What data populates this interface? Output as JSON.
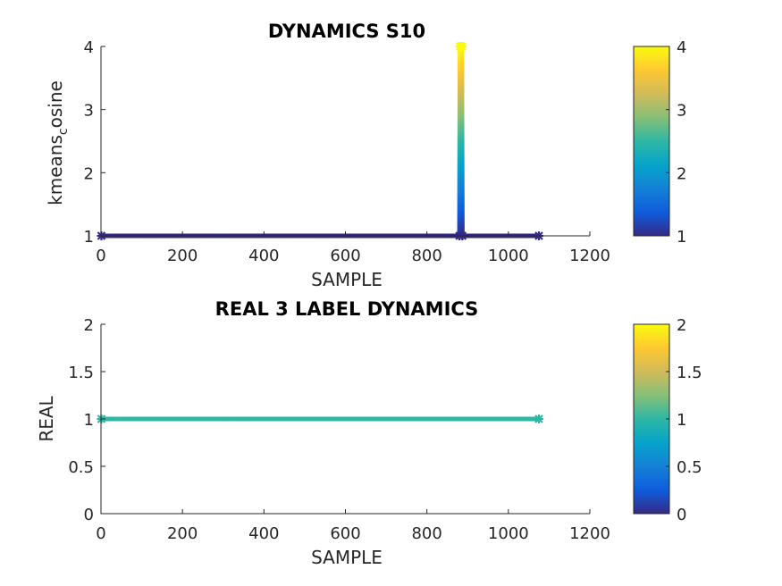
{
  "chart_data": [
    {
      "type": "line",
      "title": "DYNAMICS S10",
      "xlabel": "SAMPLE",
      "ylabel": "kmeans_cosine",
      "ylabel_main": "kmeans",
      "ylabel_sub": "c",
      "ylabel_tail": "osine",
      "xlim": [
        0,
        1200
      ],
      "ylim": [
        1,
        4
      ],
      "xticks": [
        "0",
        "200",
        "400",
        "600",
        "800",
        "1000",
        "1200"
      ],
      "yticks": [
        "1",
        "2",
        "3",
        "4"
      ],
      "colorbar": {
        "range": [
          1,
          4
        ],
        "ticks": [
          "1",
          "2",
          "3",
          "4"
        ],
        "colormap": "parula"
      },
      "series": [
        {
          "x": [
            1,
            880,
            881,
            882,
            883,
            884,
            885,
            886,
            887,
            1075
          ],
          "y": [
            1,
            1,
            4,
            4,
            4,
            4,
            4,
            4,
            1,
            1
          ]
        }
      ],
      "grid": false
    },
    {
      "type": "line",
      "title": "REAL 3 LABEL DYNAMICS",
      "xlabel": "SAMPLE",
      "ylabel": "REAL",
      "xlim": [
        0,
        1200
      ],
      "ylim": [
        0,
        2
      ],
      "xticks": [
        "0",
        "200",
        "400",
        "600",
        "800",
        "1000",
        "1200"
      ],
      "yticks": [
        "0",
        "0.5",
        "1",
        "1.5",
        "2"
      ],
      "colorbar": {
        "range": [
          0,
          2
        ],
        "ticks": [
          "0",
          "0.5",
          "1",
          "1.5",
          "2"
        ],
        "colormap": "parula"
      },
      "series": [
        {
          "x": [
            1,
            1075
          ],
          "y": [
            1,
            1
          ]
        }
      ],
      "grid": false
    }
  ],
  "colors": {
    "parula": [
      "#352a87",
      "#0f5cdd",
      "#1481d6",
      "#06a4ca",
      "#2eb7a4",
      "#87bf77",
      "#d1bb59",
      "#fec832",
      "#f9fb0e"
    ],
    "axis": "#262626"
  }
}
